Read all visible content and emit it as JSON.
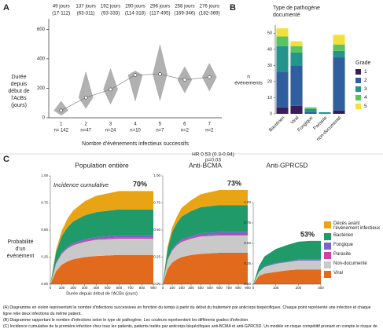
{
  "figure": {
    "panel_labels": [
      "A",
      "B",
      "C"
    ],
    "caption": [
      "(A) Diagramme en violon représentant le nombre d'infections successives en fonction du temps à partir du début du traitement par anticorps bispécifiques. Chaque point représente une infection et chaque",
      "ligne relie deux infections du même patient.",
      "(B) Diagramme rapportant le nombre d'infections selon le type de pathogène. Les couleurs représentent les différents grades d'infection",
      "(C) Incidence cumulative de la première infection chez tous les patients, patients traités par anticorps bispécifiques anti-BCMA et anti-GPRC5D. Un modèle en risque compétitif prenant en compte le risque de"
    ]
  },
  "chart_data": [
    {
      "type": "violin",
      "y_title_lines": [
        "Durée",
        "depuis",
        "début de",
        "l'AcBs",
        "(jours)"
      ],
      "x_title": "Nombre d'événements infectieux successifs",
      "categories": [
        "1",
        "2",
        "3",
        "4",
        "5",
        "6",
        "7"
      ],
      "n_labels": [
        "n= 142",
        "n=47",
        "n=24",
        "n=10",
        "n=7",
        "n=2",
        "n=2"
      ],
      "values": [
        49,
        137,
        192,
        290,
        296,
        258,
        276
      ],
      "value_labels": [
        "49 jours",
        "137 jours",
        "192 jours",
        "290 jours",
        "296 jours",
        "258 jours",
        "276 jours"
      ],
      "q1": [
        17,
        63,
        93,
        114,
        117,
        169,
        182
      ],
      "q3": [
        112,
        311,
        333,
        318,
        495,
        346,
        369
      ],
      "range_labels": [
        "(17-112)",
        "(63-311)",
        "(93-333)",
        "(114-318)",
        "(117-495)",
        "(169-346)",
        "(182-369)"
      ],
      "ylim": [
        0,
        650
      ],
      "yticks": [
        0,
        200,
        400,
        600
      ],
      "color": "#a9a9a9"
    },
    {
      "type": "stacked_bar",
      "title_lines": [
        "Type de pathogène",
        "documenté"
      ],
      "y_title_lines": [
        "n",
        "événements"
      ],
      "categories": [
        "Bactérien",
        "Viral",
        "Fongique",
        "Parasite",
        "non-documenté"
      ],
      "legend_title": "Grade",
      "series": [
        {
          "name": "1",
          "color": "#3b1c5a",
          "values": [
            4,
            5,
            0,
            0,
            2
          ]
        },
        {
          "name": "2",
          "color": "#2f5f9e",
          "values": [
            22,
            25,
            1,
            0,
            33
          ]
        },
        {
          "name": "3",
          "color": "#25948d",
          "values": [
            16,
            8,
            2,
            1,
            4
          ]
        },
        {
          "name": "4",
          "color": "#5cc45e",
          "values": [
            6,
            4,
            1,
            0,
            4
          ]
        },
        {
          "name": "5",
          "color": "#f4e03a",
          "values": [
            5,
            3,
            0,
            0,
            6
          ]
        }
      ],
      "ylim": [
        0,
        55
      ],
      "yticks": [
        0,
        10,
        20,
        30,
        40,
        50
      ]
    },
    {
      "type": "cumulative_area",
      "title": "Population entière",
      "annotation": "Incidence cumulative",
      "incidence": 70,
      "incidence_label": "70%",
      "x_title": "Durée depuis début de l'ACBs (jours)",
      "y_title_lines": [
        "Probabilité",
        "d'un",
        "événement"
      ],
      "x": [
        0,
        50,
        100,
        150,
        200,
        300,
        400,
        600,
        900
      ],
      "xlim": [
        0,
        900
      ],
      "xticks": [
        0,
        100,
        200,
        300,
        400,
        500,
        600,
        700,
        800,
        900
      ],
      "ylim": [
        0,
        1
      ],
      "yticks": [
        {
          "value": 0,
          "label": "0.00"
        },
        {
          "value": 0.25,
          "label": "0.25"
        },
        {
          "value": 0.5,
          "label": "0.50"
        },
        {
          "value": 0.75,
          "label": "0.75"
        },
        {
          "value": 1,
          "label": "1.00"
        }
      ],
      "legend": false,
      "series": [
        {
          "name": "Viral",
          "color": "#e26a1c",
          "values": [
            0,
            0.12,
            0.18,
            0.21,
            0.23,
            0.25,
            0.26,
            0.27,
            0.27
          ]
        },
        {
          "name": "Non-documenté",
          "color": "#c9c9c9",
          "values": [
            0,
            0.07,
            0.1,
            0.12,
            0.13,
            0.14,
            0.15,
            0.15,
            0.15
          ]
        },
        {
          "name": "Parasite",
          "color": "#d43fa3",
          "values": [
            0,
            0,
            0.005,
            0.005,
            0.01,
            0.01,
            0.01,
            0.01,
            0.01
          ]
        },
        {
          "name": "Fongique",
          "color": "#7a62d0",
          "values": [
            0,
            0.005,
            0.01,
            0.01,
            0.01,
            0.015,
            0.015,
            0.02,
            0.02
          ]
        },
        {
          "name": "Bactérien",
          "color": "#1f9a68",
          "values": [
            0,
            0.1,
            0.15,
            0.18,
            0.2,
            0.22,
            0.23,
            0.24,
            0.24
          ]
        },
        {
          "name": "Décès avant l'événement infectieux",
          "color": "#e8a415",
          "values": [
            0,
            0.02,
            0.05,
            0.08,
            0.1,
            0.13,
            0.15,
            0.17,
            0.17
          ]
        }
      ]
    },
    {
      "type": "cumulative_area",
      "title": "Anti-BCMA",
      "annotation_lines": [
        "HR 0.53 (0.3-0.94)",
        "p=0.03"
      ],
      "incidence": 73,
      "incidence_label": "73%",
      "x": [
        0,
        50,
        100,
        150,
        200,
        300,
        400,
        600,
        900
      ],
      "xlim": [
        0,
        900
      ],
      "xticks": [
        0,
        100,
        200,
        300,
        400,
        500,
        600,
        700,
        800,
        900
      ],
      "ylim": [
        0,
        1
      ],
      "yticks": [
        {
          "value": 0,
          "label": "0.00"
        },
        {
          "value": 0.25,
          "label": "0.25"
        },
        {
          "value": 0.5,
          "label": "0.50"
        },
        {
          "value": 0.75,
          "label": "0.75"
        },
        {
          "value": 1,
          "label": "1.00"
        }
      ],
      "legend": false,
      "series": [
        {
          "name": "Viral",
          "color": "#e26a1c",
          "values": [
            0,
            0.14,
            0.2,
            0.23,
            0.25,
            0.27,
            0.28,
            0.29,
            0.29
          ]
        },
        {
          "name": "Non-documenté",
          "color": "#c9c9c9",
          "values": [
            0,
            0.08,
            0.11,
            0.13,
            0.14,
            0.15,
            0.16,
            0.16,
            0.16
          ]
        },
        {
          "name": "Parasite",
          "color": "#d43fa3",
          "values": [
            0,
            0,
            0.005,
            0.005,
            0.01,
            0.01,
            0.01,
            0.01,
            0.01
          ]
        },
        {
          "name": "Fongique",
          "color": "#7a62d0",
          "values": [
            0,
            0.005,
            0.01,
            0.01,
            0.015,
            0.015,
            0.02,
            0.02,
            0.02
          ]
        },
        {
          "name": "Bactérien",
          "color": "#1f9a68",
          "values": [
            0,
            0.1,
            0.16,
            0.19,
            0.21,
            0.23,
            0.24,
            0.25,
            0.25
          ]
        },
        {
          "name": "Décès avant l'événement infectieux",
          "color": "#e8a415",
          "values": [
            0,
            0.02,
            0.04,
            0.06,
            0.08,
            0.1,
            0.12,
            0.14,
            0.14
          ]
        }
      ]
    },
    {
      "type": "cumulative_area",
      "title": "Anti-GPRC5D",
      "incidence": 53,
      "incidence_label": "53%",
      "x": [
        0,
        25,
        50,
        100,
        150,
        200,
        250,
        300
      ],
      "xlim": [
        0,
        300
      ],
      "xticks": [
        0,
        100,
        200,
        300
      ],
      "ylim": [
        0,
        1
      ],
      "yticks": [
        {
          "value": 0,
          "label": "0.00"
        },
        {
          "value": 0.25,
          "label": "0.25"
        },
        {
          "value": 0.5,
          "label": "0.50"
        },
        {
          "value": 0.75,
          "label": "0.75"
        },
        {
          "value": 1,
          "label": "1.00"
        }
      ],
      "legend": true,
      "series": [
        {
          "name": "Viral",
          "color": "#e26a1c",
          "values": [
            0,
            0.1,
            0.13,
            0.15,
            0.17,
            0.18,
            0.18,
            0.18
          ]
        },
        {
          "name": "Non-documenté",
          "color": "#c9c9c9",
          "values": [
            0,
            0.05,
            0.08,
            0.1,
            0.1,
            0.11,
            0.11,
            0.11
          ]
        },
        {
          "name": "Parasite",
          "color": "#d43fa3",
          "values": [
            0,
            0,
            0,
            0,
            0,
            0,
            0,
            0
          ]
        },
        {
          "name": "Fongique",
          "color": "#7a62d0",
          "values": [
            0,
            0,
            0.01,
            0.01,
            0.01,
            0.01,
            0.01,
            0.01
          ]
        },
        {
          "name": "Bactérien",
          "color": "#1f9a68",
          "values": [
            0,
            0.07,
            0.12,
            0.17,
            0.2,
            0.22,
            0.23,
            0.23
          ]
        },
        {
          "name": "Décès avant l'événement infectieux",
          "color": "#e8a415",
          "values": [
            0,
            0,
            0,
            0,
            0,
            0,
            0,
            0
          ]
        }
      ]
    }
  ]
}
